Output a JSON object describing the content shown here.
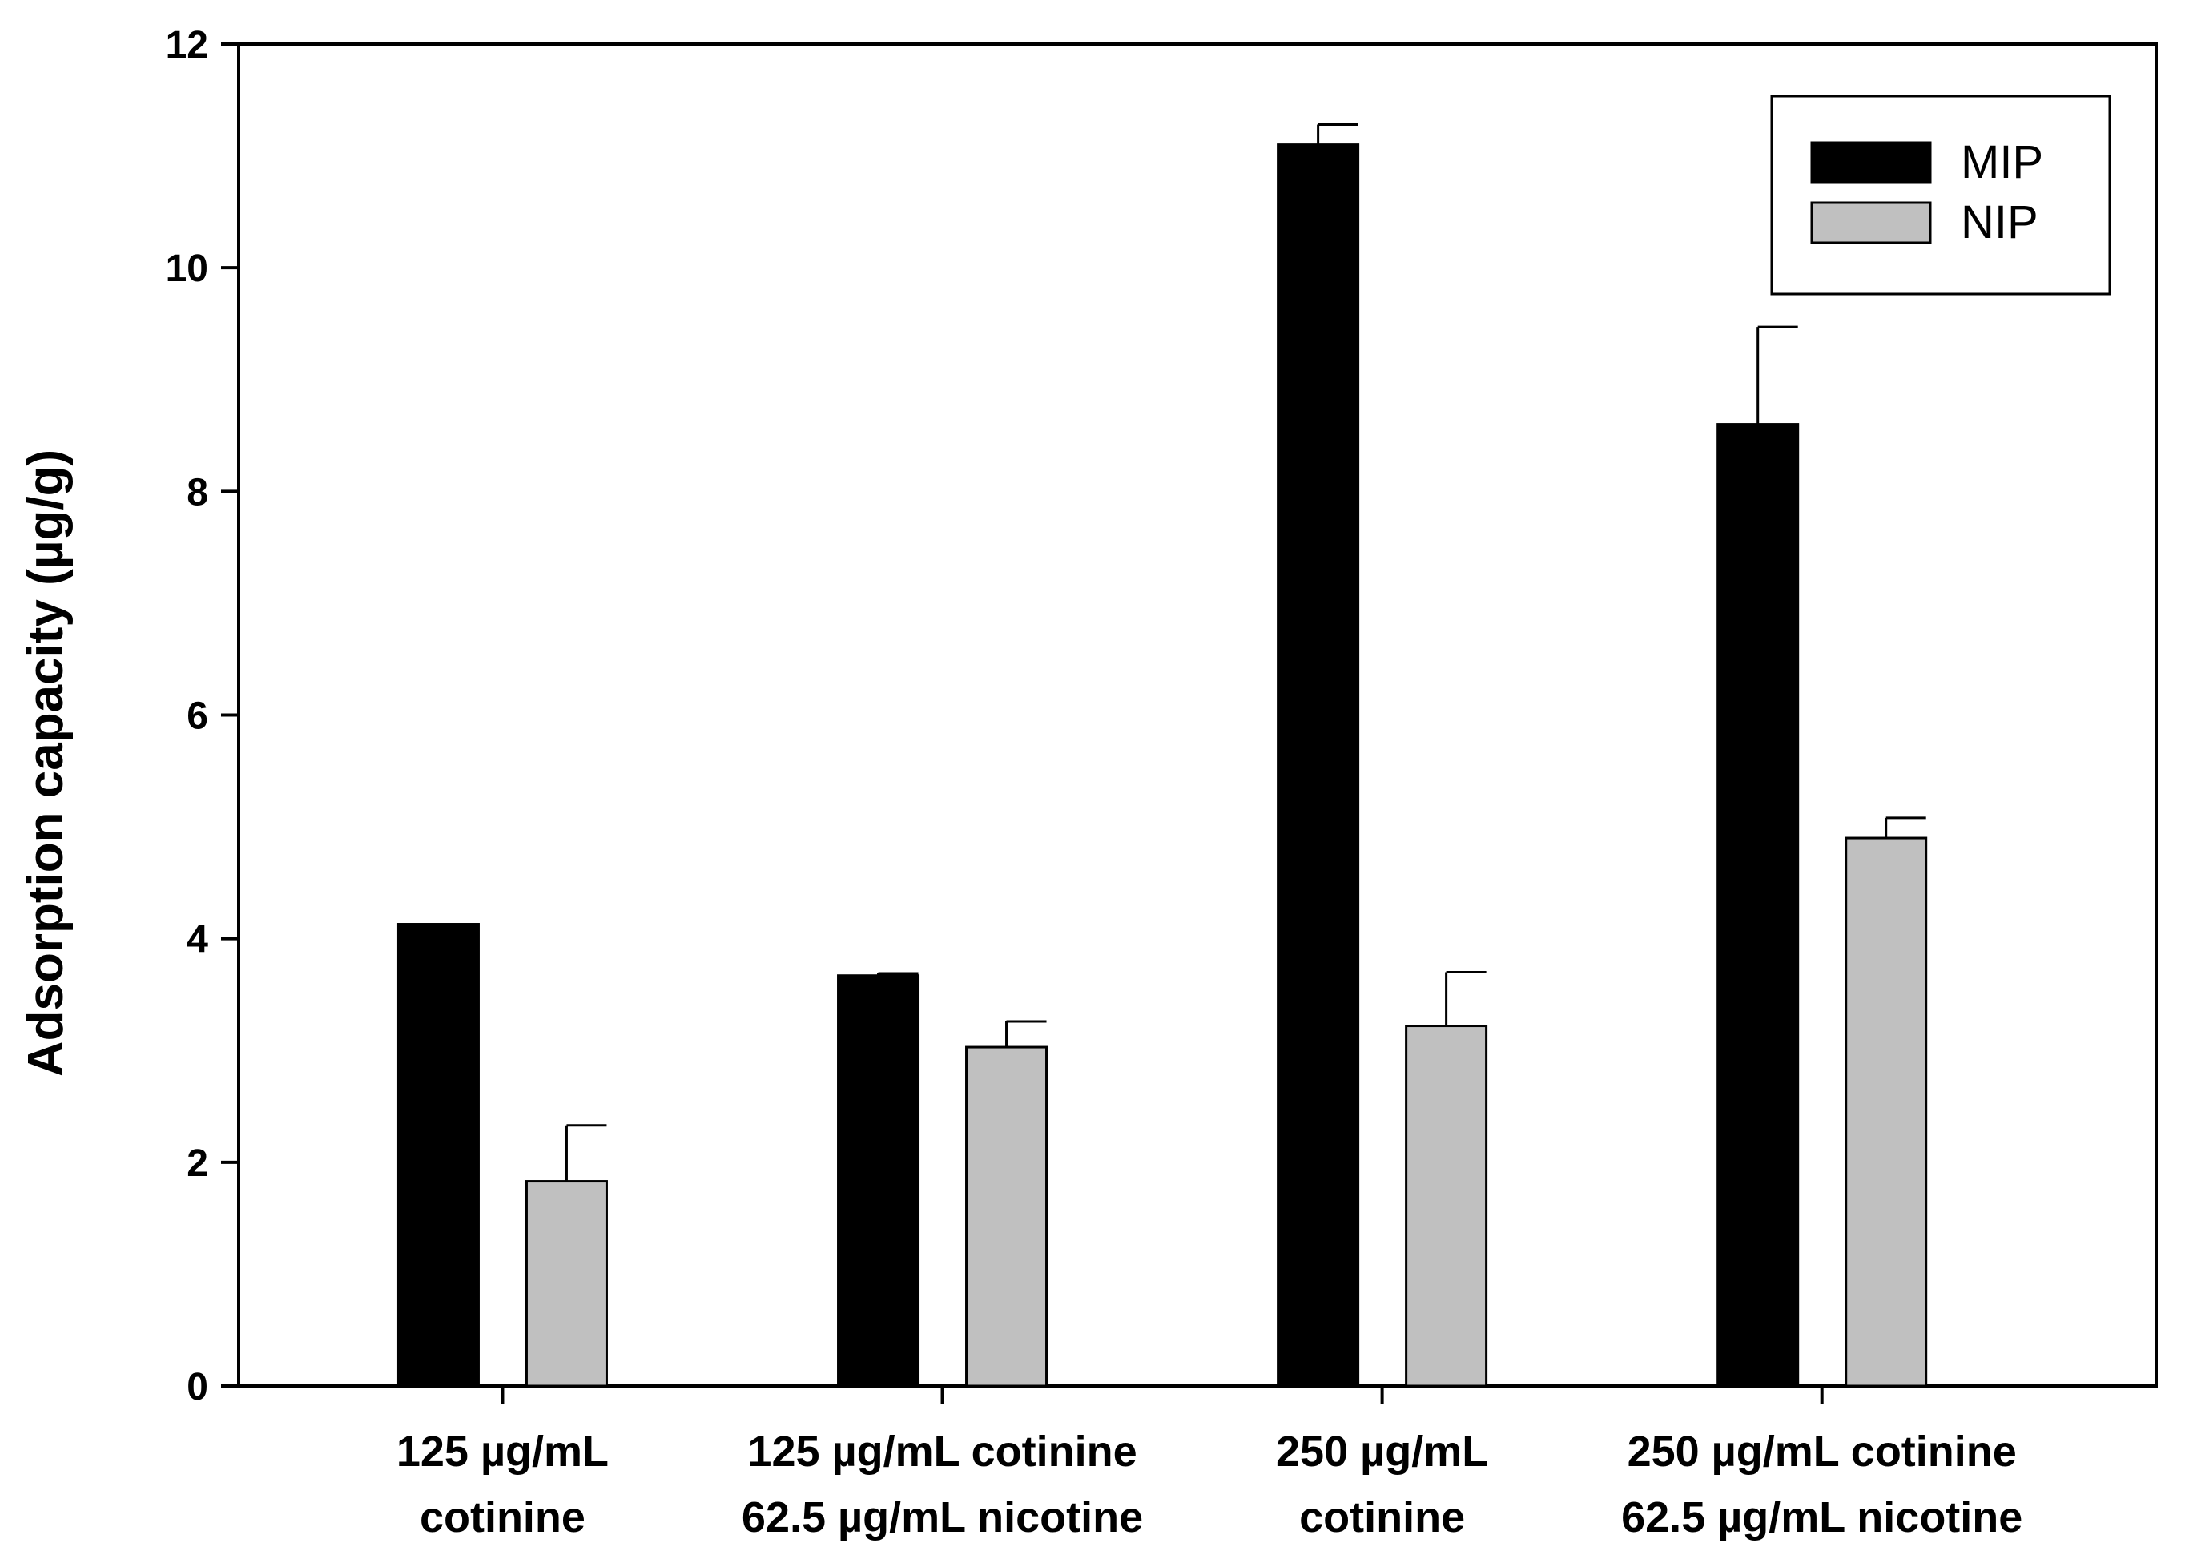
{
  "chart_data": {
    "type": "bar",
    "title": "",
    "xlabel": "",
    "ylabel": "Adsorption capacity (µg/g)",
    "ylim": [
      0,
      12
    ],
    "yticks": [
      "0",
      "2",
      "4",
      "6",
      "8",
      "10",
      "12"
    ],
    "grid": false,
    "legend_position": "top-right",
    "categories": [
      [
        "125 µg/mL",
        "cotinine"
      ],
      [
        "125 µg/mL cotinine",
        "62.5 µg/mL nicotine"
      ],
      [
        "250 µg/mL",
        "cotinine"
      ],
      [
        "250 µg/mL cotinine",
        "62.5 µg/mL nicotine"
      ]
    ],
    "series": [
      {
        "name": "MIP",
        "color": "#000000",
        "values": [
          4.13,
          3.67,
          11.1,
          8.6
        ],
        "errors": [
          0.0,
          0.02,
          0.18,
          0.87
        ]
      },
      {
        "name": "NIP",
        "color": "#c0c0c0",
        "values": [
          1.83,
          3.03,
          3.22,
          4.9
        ],
        "errors": [
          0.5,
          0.23,
          0.48,
          0.18
        ]
      }
    ]
  }
}
